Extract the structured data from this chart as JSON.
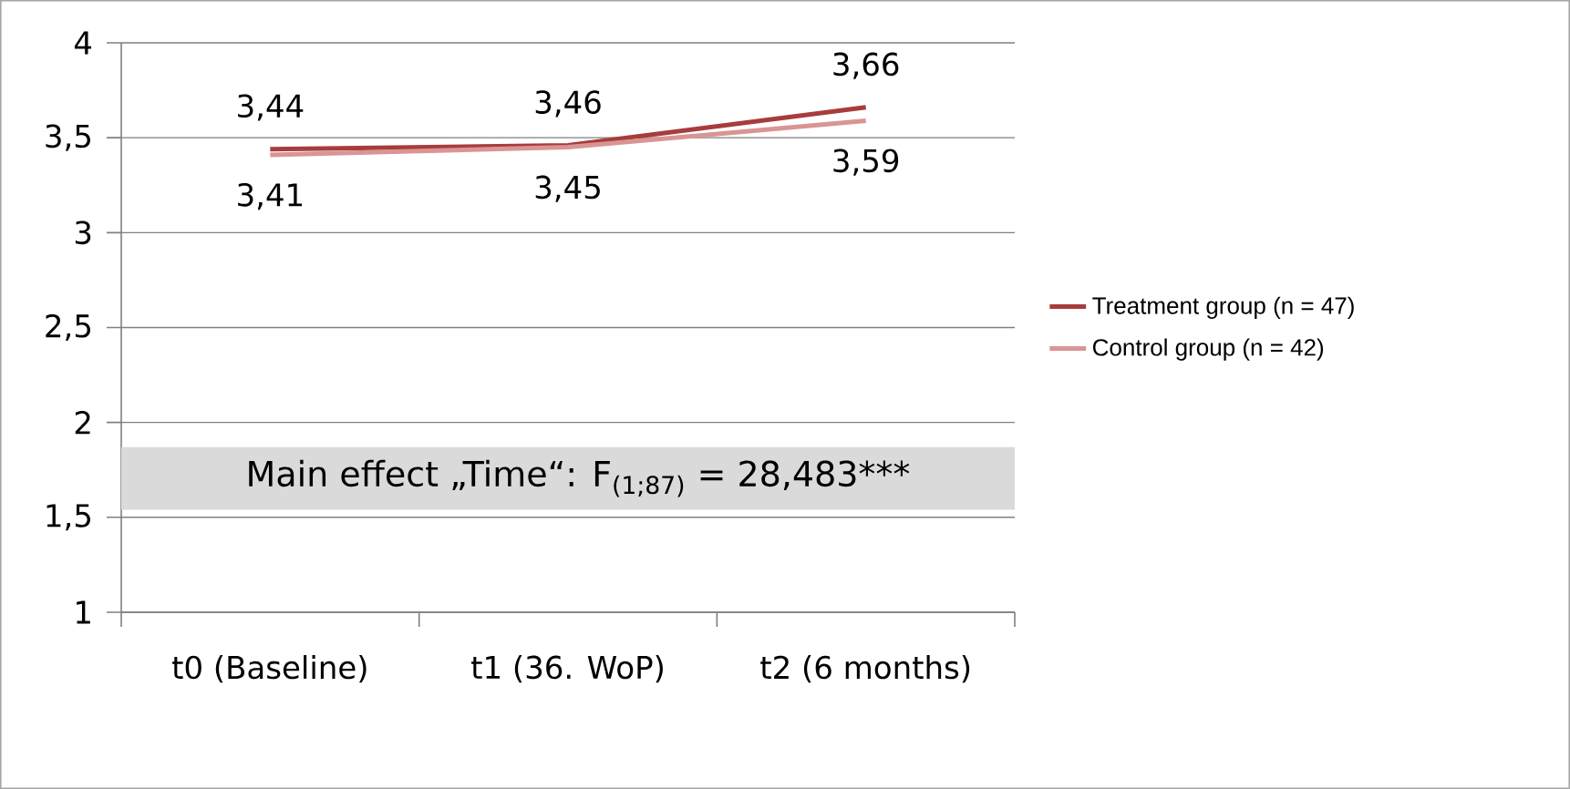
{
  "chart_data": {
    "type": "line",
    "categories": [
      "t0 (Baseline)",
      "t1 (36. WoP)",
      "t2 (6 months)"
    ],
    "series": [
      {
        "name": "Treatment group (n = 47)",
        "color": "#a83c3c",
        "values": [
          3.44,
          3.46,
          3.66
        ],
        "value_labels": [
          "3,44",
          "3,46",
          "3,66"
        ]
      },
      {
        "name": "Control group (n = 42)",
        "color": "#d99594",
        "values": [
          3.41,
          3.45,
          3.59
        ],
        "value_labels": [
          "3,41",
          "3,45",
          "3,59"
        ]
      }
    ],
    "ylim": [
      1,
      4
    ],
    "yticks": [
      1,
      {
        "value": 1.5,
        "label": "1,5"
      },
      2,
      {
        "value": 2.5,
        "label": "2,5"
      },
      3,
      {
        "value": 3.5,
        "label": "3,5"
      },
      4
    ],
    "grid": "y",
    "legend": "right",
    "marker": "none",
    "line_style": "solid",
    "bands": [
      {
        "axis": "y",
        "from": 1.54,
        "to": 1.87,
        "color": "#dadada",
        "label": "Main effect „Time“: F$_{(1;87)}$ = 28,483***"
      }
    ]
  }
}
